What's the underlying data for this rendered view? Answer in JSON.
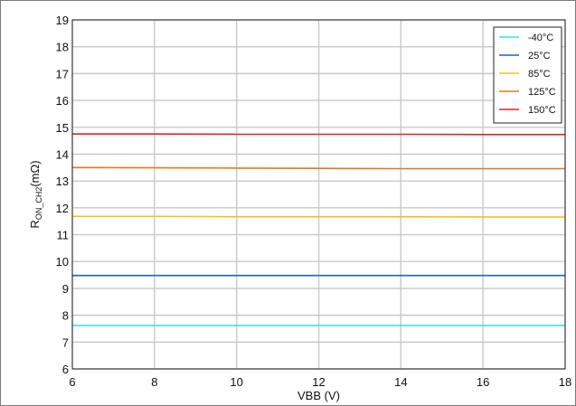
{
  "chart_data": {
    "type": "line",
    "xlabel": "VBB (V)",
    "ylabel": {
      "main": "R",
      "sub": "ON_CH2",
      "unit": "(mΩ)"
    },
    "xlim": [
      6,
      18
    ],
    "ylim": [
      6,
      19
    ],
    "xticks": [
      6,
      8,
      10,
      12,
      14,
      16,
      18
    ],
    "yticks": [
      6,
      7,
      8,
      9,
      10,
      11,
      12,
      13,
      14,
      15,
      16,
      17,
      18,
      19
    ],
    "grid": true,
    "legend_position": "top-right",
    "x": [
      6,
      8,
      10,
      12,
      14,
      16,
      18
    ],
    "series": [
      {
        "name": "-40°C",
        "color": "#3ee0e0",
        "values": [
          7.62,
          7.62,
          7.62,
          7.62,
          7.62,
          7.62,
          7.62
        ]
      },
      {
        "name": "25°C",
        "color": "#1f64b4",
        "values": [
          9.48,
          9.48,
          9.48,
          9.48,
          9.48,
          9.48,
          9.48
        ]
      },
      {
        "name": "85°C",
        "color": "#f5c211",
        "values": [
          11.68,
          11.68,
          11.67,
          11.67,
          11.67,
          11.66,
          11.66
        ]
      },
      {
        "name": "125°C",
        "color": "#e8761e",
        "values": [
          13.5,
          13.49,
          13.48,
          13.47,
          13.46,
          13.46,
          13.46
        ]
      },
      {
        "name": "150°C",
        "color": "#e02424",
        "values": [
          14.75,
          14.75,
          14.74,
          14.74,
          14.74,
          14.73,
          14.73
        ]
      }
    ]
  }
}
